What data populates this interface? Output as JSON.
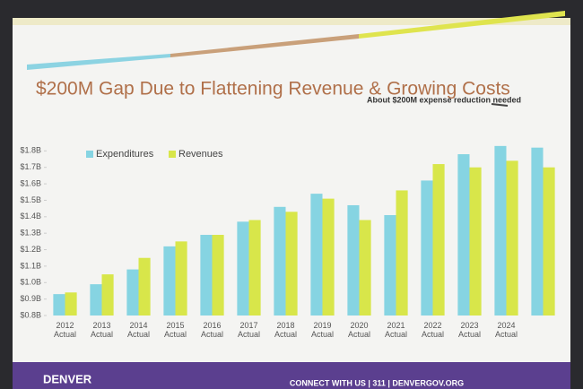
{
  "chart_data": {
    "type": "bar",
    "title": "$200M Gap Due to Flattening Revenue & Growing Costs",
    "annotation": "About $200M expense reduction needed",
    "categories": [
      "2012 Actual",
      "2013 Actual",
      "2014 Actual",
      "2015 Actual",
      "2016 Actual",
      "2017 Actual",
      "2018 Actual",
      "2019 Actual",
      "2020 Actual",
      "2021 Actual",
      "2022 Actual",
      "2023 Actual",
      "2024 Actual",
      null
    ],
    "series": [
      {
        "name": "Expenditures",
        "color": "#86d4e2",
        "values": [
          0.93,
          0.99,
          1.08,
          1.22,
          1.29,
          1.37,
          1.46,
          1.54,
          1.47,
          1.41,
          1.62,
          1.78,
          1.83,
          1.82
        ]
      },
      {
        "name": "Revenues",
        "color": "#d8e64a",
        "values": [
          0.94,
          1.05,
          1.15,
          1.25,
          1.29,
          1.38,
          1.43,
          1.51,
          1.38,
          1.56,
          1.72,
          1.7,
          1.74,
          1.7
        ]
      }
    ],
    "ylim": [
      0.8,
      1.9
    ],
    "yticks": [
      {
        "value": 0.8,
        "label": "$0.8B"
      },
      {
        "value": 0.9,
        "label": "$0.9B"
      },
      {
        "value": 1.0,
        "label": "$1.0B"
      },
      {
        "value": 1.1,
        "label": "$1.1B"
      },
      {
        "value": 1.2,
        "label": "$1.2B"
      },
      {
        "value": 1.3,
        "label": "$1.3B"
      },
      {
        "value": 1.4,
        "label": "$1.4B"
      },
      {
        "value": 1.5,
        "label": "$1.5B"
      },
      {
        "value": 1.6,
        "label": "$1.6B"
      },
      {
        "value": 1.7,
        "label": "$1.7B"
      },
      {
        "value": 1.8,
        "label": "$1.8B"
      }
    ],
    "grid": false
  },
  "footer": {
    "brand": "DENVER",
    "contact": "CONNECT WITH US | 311 | DENVERGOV.ORG"
  }
}
